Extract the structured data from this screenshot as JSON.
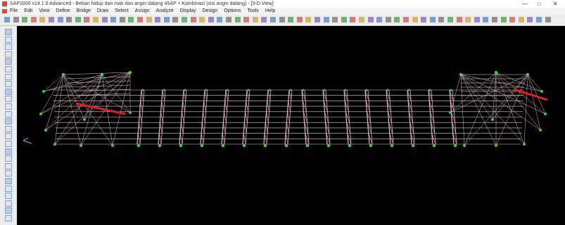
{
  "window": {
    "title": "SAP2000 v14.1.0 Advanced - Beban hidup dan mati dan angin datang 45AP + Kombinasi (sisi angin datang) - [3-D View]"
  },
  "menu": [
    "File",
    "Edit",
    "View",
    "Define",
    "Bridge",
    "Draw",
    "Select",
    "Assign",
    "Analyze",
    "Display",
    "Design",
    "Options",
    "Tools",
    "Help"
  ]
}
